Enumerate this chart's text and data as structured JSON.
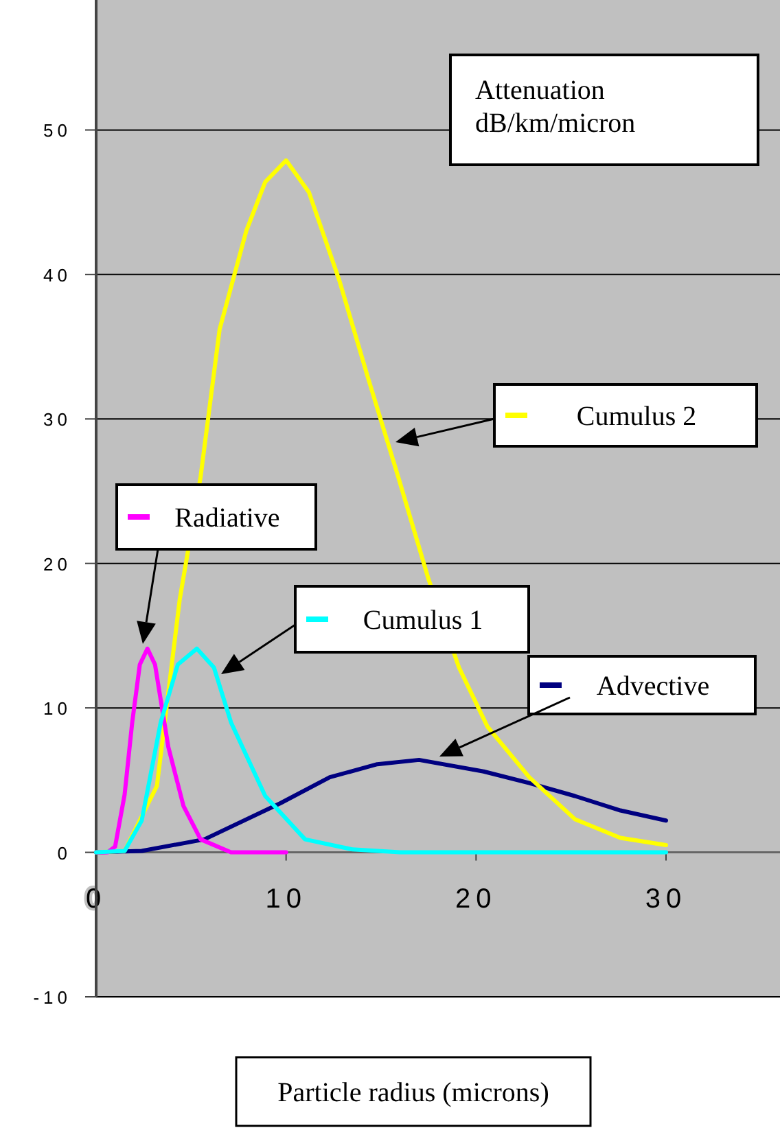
{
  "chart_data": {
    "type": "line",
    "xlabel": "Particle radius (microns)",
    "ylabel": "Attenuation\ndB/km/micron",
    "xlim": [
      0,
      36
    ],
    "ylim": [
      -10,
      59
    ],
    "xticks": [
      0,
      10,
      20,
      30
    ],
    "yticks": [
      -10,
      0,
      10,
      20,
      30,
      40,
      50
    ],
    "grid": "y",
    "legend": "right",
    "series": [
      {
        "name": "Advective",
        "color": "#000080",
        "x": [
          0,
          2.4,
          5.7,
          9.7,
          12.3,
          14.8,
          17,
          20.4,
          22.8,
          25.2,
          27.6,
          30
        ],
        "values": [
          0,
          0.1,
          0.9,
          3.4,
          5.2,
          6.1,
          6.4,
          5.6,
          4.8,
          3.9,
          2.9,
          2.2
        ]
      },
      {
        "name": "Cumulus 2",
        "color": "#ffff00",
        "x": [
          0,
          1.5,
          3.2,
          4.4,
          5.5,
          6.5,
          7.9,
          8.9,
          10,
          11.2,
          12.8,
          14.3,
          15.9,
          17.5,
          19.1,
          20.6,
          22.8,
          25.2,
          27.6,
          30
        ],
        "values": [
          0,
          0.1,
          4.6,
          17.5,
          26,
          36.2,
          43,
          46.4,
          47.9,
          45.7,
          39.6,
          32.9,
          26,
          18.9,
          12.8,
          8.7,
          5.2,
          2.3,
          1,
          0.5
        ]
      },
      {
        "name": "Radiative",
        "color": "#ff00ff",
        "x": [
          0,
          0.6,
          1,
          1.5,
          1.9,
          2.3,
          2.7,
          3.1,
          3.8,
          4.6,
          5.5,
          7.1,
          10
        ],
        "values": [
          0,
          0,
          0.4,
          4,
          9,
          13,
          14.1,
          13,
          7.3,
          3.2,
          0.9,
          0,
          0
        ]
      },
      {
        "name": "Cumulus 1",
        "color": "#00ffff",
        "x": [
          0,
          1.5,
          2.4,
          3.4,
          4.3,
          5.3,
          6.2,
          7.1,
          8.9,
          11,
          13.5,
          16,
          20,
          25,
          30
        ],
        "values": [
          0,
          0.1,
          2.2,
          9,
          13,
          14.1,
          12.8,
          9,
          3.9,
          0.9,
          0.2,
          0,
          0,
          0,
          0
        ]
      }
    ]
  }
}
